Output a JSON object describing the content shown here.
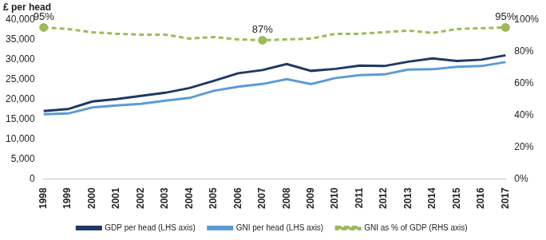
{
  "chart_data": {
    "type": "line",
    "y_label": "£ per head",
    "categories": [
      "1998",
      "1999",
      "2000",
      "2001",
      "2002",
      "2003",
      "2004",
      "2005",
      "2006",
      "2007",
      "2008",
      "2009",
      "2010",
      "2011",
      "2012",
      "2013",
      "2014",
      "2015",
      "2016",
      "2017"
    ],
    "ylim": [
      0,
      40000
    ],
    "yticks": [
      0,
      {
        "value": 5000,
        "label": "5,000"
      },
      {
        "value": 10000,
        "label": "10,000"
      },
      {
        "value": 15000,
        "label": "15,000"
      },
      {
        "value": 20000,
        "label": "20,000"
      },
      {
        "value": 25000,
        "label": "25,000"
      },
      {
        "value": 30000,
        "label": "30,000"
      },
      {
        "value": 35000,
        "label": "35,000"
      },
      {
        "value": 40000,
        "label": "40,000"
      }
    ],
    "y2lim": [
      0,
      100
    ],
    "y2ticks": [
      {
        "value": 0,
        "label": "0%"
      },
      {
        "value": 20,
        "label": "20%"
      },
      {
        "value": 40,
        "label": "40%"
      },
      {
        "value": 60,
        "label": "60%"
      },
      {
        "value": 80,
        "label": "80%"
      },
      {
        "value": 100,
        "label": "100%"
      }
    ],
    "grid": false,
    "legend": "bottom",
    "series": [
      {
        "name": "GDP per head (LHS axis)",
        "color": "#1f3864",
        "line_style": "solid",
        "values": [
          17000,
          17500,
          19400,
          20000,
          20800,
          21600,
          22800,
          24600,
          26500,
          27300,
          28800,
          27100,
          27600,
          28400,
          28300,
          29400,
          30200,
          29600,
          29900,
          31000
        ]
      },
      {
        "name": "GNI per head (LHS axis)",
        "color": "#5b9bd5",
        "line_style": "solid",
        "values": [
          16200,
          16400,
          17900,
          18400,
          18800,
          19600,
          20300,
          22100,
          23100,
          23800,
          25000,
          23800,
          25300,
          26000,
          26200,
          27400,
          27500,
          28100,
          28300,
          29300
        ]
      },
      {
        "name": "GNI as % of GDP (RHS axis)",
        "color": "#9bbb59",
        "line_style": "dashed",
        "axis": "y2",
        "marker": "circle",
        "data_labels": true,
        "values": [
          95,
          94,
          92,
          91,
          90.5,
          90.5,
          88,
          89,
          87.5,
          87,
          87.5,
          88,
          91,
          91,
          92,
          93,
          91.5,
          94,
          94.5,
          95
        ],
        "value_labels": [
          "95%",
          null,
          null,
          null,
          null,
          null,
          null,
          null,
          null,
          "87%",
          null,
          null,
          null,
          null,
          null,
          null,
          null,
          null,
          null,
          "95%"
        ]
      }
    ]
  }
}
